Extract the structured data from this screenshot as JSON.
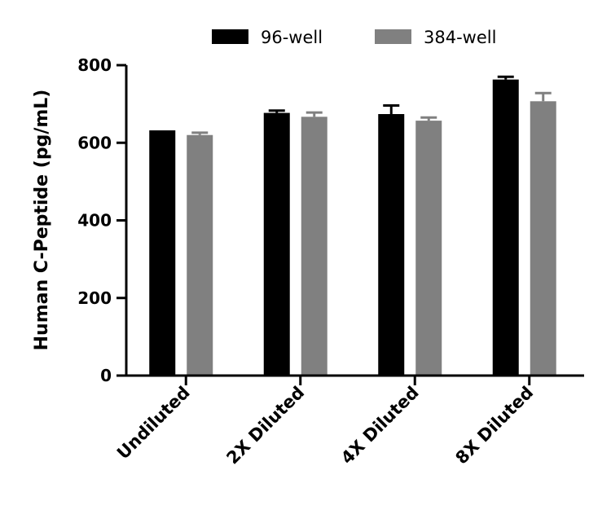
{
  "chart_data": {
    "type": "bar",
    "title": "",
    "xlabel": "",
    "ylabel": "Human C-Peptide (pg/mL)",
    "ylim": [
      0,
      800
    ],
    "yticks": [
      0,
      200,
      400,
      600,
      800
    ],
    "categories": [
      "Undiluted",
      "2X Diluted",
      "4X Diluted",
      "8X Diluted"
    ],
    "series": [
      {
        "name": "96-well",
        "color": "#000000",
        "values": [
          632,
          677,
          674,
          763
        ],
        "errors": [
          0,
          6,
          22,
          7
        ]
      },
      {
        "name": "384-well",
        "color": "#808080",
        "values": [
          620,
          667,
          657,
          707
        ],
        "errors": [
          6,
          11,
          8,
          21
        ]
      }
    ],
    "legend": "top",
    "grid": false
  }
}
